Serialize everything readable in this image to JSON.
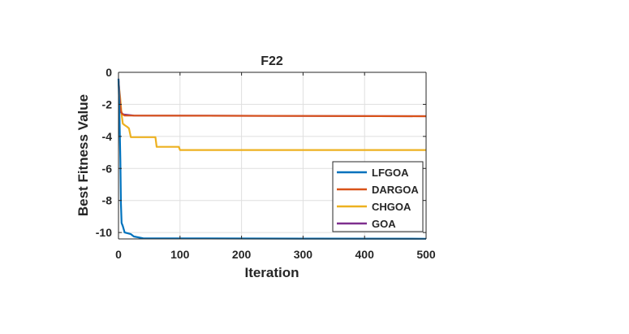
{
  "chart_data": {
    "type": "line",
    "title": "F22",
    "xlabel": "Iteration",
    "ylabel": "Best Fitness Value",
    "xlim": [
      0,
      500
    ],
    "ylim": [
      -10.4,
      0
    ],
    "xticks": [
      "0",
      "100",
      "200",
      "300",
      "400",
      "500"
    ],
    "xtick_values": [
      0,
      100,
      200,
      300,
      400,
      500
    ],
    "yticks": [
      "0",
      "-2",
      "-4",
      "-6",
      "-8",
      "-10"
    ],
    "ytick_values": [
      0,
      -2,
      -4,
      -6,
      -8,
      -10
    ],
    "grid": true,
    "legend_position": "inside-bottom-right",
    "series": [
      {
        "name": "LFGOA",
        "color": "#0072BD",
        "points": [
          [
            0,
            -0.4
          ],
          [
            1,
            -1.8
          ],
          [
            2,
            -3.5
          ],
          [
            3,
            -5.5
          ],
          [
            4,
            -8.2
          ],
          [
            5,
            -9.4
          ],
          [
            7,
            -9.6
          ],
          [
            10,
            -10.0
          ],
          [
            20,
            -10.1
          ],
          [
            25,
            -10.25
          ],
          [
            40,
            -10.36
          ],
          [
            300,
            -10.38
          ],
          [
            500,
            -10.39
          ]
        ]
      },
      {
        "name": "DARGOA",
        "color": "#D95319",
        "points": [
          [
            0,
            -0.5
          ],
          [
            2,
            -1.8
          ],
          [
            4,
            -2.4
          ],
          [
            6,
            -2.6
          ],
          [
            10,
            -2.7
          ],
          [
            500,
            -2.74
          ]
        ]
      },
      {
        "name": "CHGOA",
        "color": "#EDB120",
        "points": [
          [
            0,
            -0.6
          ],
          [
            3,
            -1.7
          ],
          [
            5,
            -2.6
          ],
          [
            7,
            -3.2
          ],
          [
            10,
            -3.3
          ],
          [
            14,
            -3.4
          ],
          [
            17,
            -3.5
          ],
          [
            20,
            -4.05
          ],
          [
            60,
            -4.05
          ],
          [
            62,
            -4.65
          ],
          [
            98,
            -4.65
          ],
          [
            100,
            -4.85
          ],
          [
            500,
            -4.85
          ]
        ]
      },
      {
        "name": "GOA",
        "color": "#7E2F8E",
        "points": [
          [
            0,
            -0.4
          ],
          [
            2,
            -1.6
          ],
          [
            4,
            -2.5
          ],
          [
            8,
            -2.63
          ],
          [
            25,
            -2.7
          ],
          [
            500,
            -2.74
          ]
        ]
      }
    ]
  }
}
